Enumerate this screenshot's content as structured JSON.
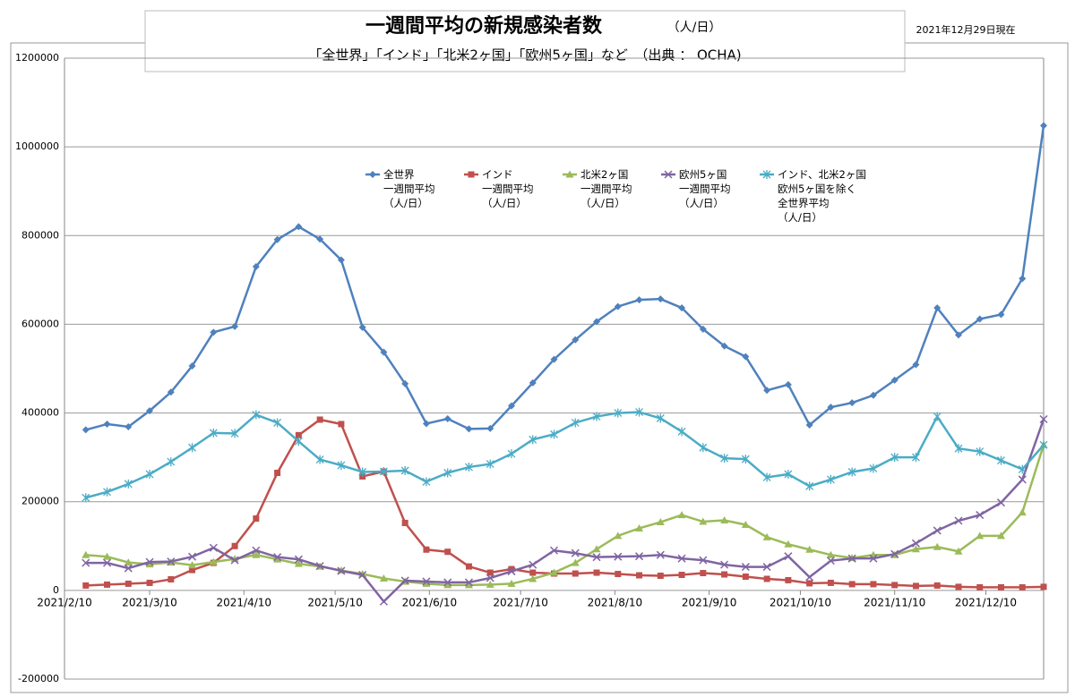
{
  "chart_data": {
    "type": "line",
    "title": "一週間平均の新規感染者数",
    "title_unit": "（人/日）",
    "subtitle": "「全世界」「インド」「北米2ヶ国」「欧州5ヶ国」など　（出典 ： OCHA)",
    "date_note": "2021年12月29日現在",
    "x": [
      "2021/2/17",
      "2021/2/24",
      "2021/3/3",
      "2021/3/10",
      "2021/3/17",
      "2021/3/24",
      "2021/3/31",
      "2021/4/7",
      "2021/4/14",
      "2021/4/21",
      "2021/4/28",
      "2021/5/5",
      "2021/5/12",
      "2021/5/19",
      "2021/5/26",
      "2021/6/2",
      "2021/6/9",
      "2021/6/16",
      "2021/6/23",
      "2021/6/30",
      "2021/7/7",
      "2021/7/14",
      "2021/7/21",
      "2021/7/28",
      "2021/8/4",
      "2021/8/11",
      "2021/8/18",
      "2021/8/25",
      "2021/9/1",
      "2021/9/8",
      "2021/9/15",
      "2021/9/22",
      "2021/9/29",
      "2021/10/6",
      "2021/10/13",
      "2021/10/20",
      "2021/10/27",
      "2021/11/3",
      "2021/11/10",
      "2021/11/17",
      "2021/11/24",
      "2021/12/1",
      "2021/12/8",
      "2021/12/15",
      "2021/12/22",
      "2021/12/29"
    ],
    "xlim": [
      "2021/2/10",
      "2021/12/29"
    ],
    "xticks": [
      "2021/2/10",
      "2021/3/10",
      "2021/4/10",
      "2021/5/10",
      "2021/6/10",
      "2021/7/10",
      "2021/8/10",
      "2021/9/10",
      "2021/10/10",
      "2021/11/10",
      "2021/12/10"
    ],
    "ylim": [
      -200000,
      1200000
    ],
    "yticks": [
      -200000,
      0,
      200000,
      400000,
      600000,
      800000,
      1000000,
      1200000
    ],
    "grid": true,
    "series": [
      {
        "name": "全世界\n一週間平均\n（人/日）",
        "color": "#4f81bd",
        "marker": "diamond",
        "values": [
          362000,
          375000,
          369000,
          405000,
          447000,
          506000,
          582000,
          595000,
          730000,
          791000,
          820000,
          792000,
          745000,
          593000,
          537000,
          466000,
          376000,
          387000,
          364000,
          365000,
          416000,
          468000,
          521000,
          565000,
          606000,
          640000,
          655000,
          657000,
          637000,
          589000,
          551000,
          527000,
          451000,
          464000,
          373000,
          413000,
          423000,
          440000,
          474000,
          509000,
          637000,
          576000,
          612000,
          622000,
          703000,
          1048000
        ]
      },
      {
        "name": "インド\n一週間平均\n（人/日）",
        "color": "#c0504d",
        "marker": "square",
        "values": [
          11000,
          13000,
          15000,
          17000,
          25000,
          46000,
          62000,
          100000,
          162000,
          265000,
          350000,
          385000,
          375000,
          257000,
          268000,
          152000,
          92000,
          87000,
          54000,
          40000,
          48000,
          40000,
          38000,
          38000,
          40000,
          37000,
          34000,
          33000,
          35000,
          39000,
          36000,
          31000,
          26000,
          23000,
          16000,
          17000,
          14000,
          14000,
          12000,
          10000,
          11000,
          8000,
          7000,
          7000,
          7000,
          8000
        ]
      },
      {
        "name": "北米2ヶ国\n一週間平均\n（人/日）",
        "color": "#9bbb59",
        "marker": "triangle",
        "values": [
          80000,
          76000,
          63000,
          59000,
          63000,
          57000,
          64000,
          71000,
          80000,
          70000,
          60000,
          54000,
          45000,
          37000,
          27000,
          20000,
          15000,
          12000,
          12000,
          13000,
          15000,
          26000,
          40000,
          62000,
          93000,
          123000,
          140000,
          154000,
          170000,
          155000,
          158000,
          148000,
          120000,
          104000,
          92000,
          80000,
          73000,
          80000,
          80000,
          93000,
          98000,
          88000,
          123000,
          123000,
          176000,
          328000
        ]
      },
      {
        "name": "欧州5ヶ国\n一週間平均\n（人/日）",
        "color": "#8064a2",
        "marker": "x",
        "values": [
          62000,
          62000,
          50000,
          64000,
          65000,
          76000,
          96000,
          68000,
          90000,
          75000,
          70000,
          55000,
          44000,
          35000,
          -25000,
          22000,
          20000,
          18000,
          18000,
          28000,
          43000,
          58000,
          90000,
          84000,
          75000,
          76000,
          77000,
          80000,
          72000,
          68000,
          58000,
          53000,
          53000,
          77000,
          30000,
          67000,
          72000,
          72000,
          82000,
          106000,
          135000,
          157000,
          170000,
          198000,
          250000,
          386000
        ]
      },
      {
        "name": "インド、北米2ヶ国\n欧州5ヶ国を除く\n全世界平均\n（人/日）",
        "color": "#4bacc6",
        "marker": "star",
        "values": [
          209000,
          222000,
          240000,
          262000,
          290000,
          322000,
          355000,
          354000,
          396000,
          378000,
          336000,
          295000,
          282000,
          267000,
          268000,
          270000,
          245000,
          265000,
          278000,
          285000,
          308000,
          340000,
          352000,
          378000,
          392000,
          400000,
          402000,
          388000,
          358000,
          322000,
          298000,
          296000,
          255000,
          262000,
          235000,
          250000,
          267000,
          275000,
          300000,
          300000,
          392000,
          320000,
          313000,
          293000,
          273000,
          328000
        ]
      }
    ]
  }
}
